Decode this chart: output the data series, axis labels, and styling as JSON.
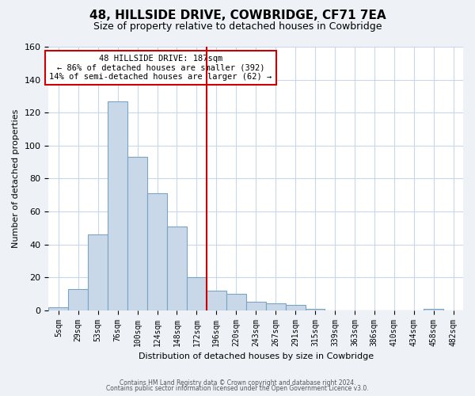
{
  "title": "48, HILLSIDE DRIVE, COWBRIDGE, CF71 7EA",
  "subtitle": "Size of property relative to detached houses in Cowbridge",
  "xlabel": "Distribution of detached houses by size in Cowbridge",
  "ylabel": "Number of detached properties",
  "bin_labels": [
    "5sqm",
    "29sqm",
    "53sqm",
    "76sqm",
    "100sqm",
    "124sqm",
    "148sqm",
    "172sqm",
    "196sqm",
    "220sqm",
    "243sqm",
    "267sqm",
    "291sqm",
    "315sqm",
    "339sqm",
    "363sqm",
    "386sqm",
    "410sqm",
    "434sqm",
    "458sqm",
    "482sqm"
  ],
  "bar_heights": [
    2,
    13,
    46,
    127,
    93,
    71,
    51,
    20,
    12,
    10,
    5,
    4,
    3,
    1,
    0,
    0,
    0,
    0,
    0,
    1,
    0
  ],
  "bar_color": "#c8d8e8",
  "bar_edge_color": "#7ba4c4",
  "vline_x": 7.5,
  "vline_color": "#cc0000",
  "ylim": [
    0,
    160
  ],
  "yticks": [
    0,
    20,
    40,
    60,
    80,
    100,
    120,
    140,
    160
  ],
  "annotation_title": "48 HILLSIDE DRIVE: 187sqm",
  "annotation_line1": "← 86% of detached houses are smaller (392)",
  "annotation_line2": "14% of semi-detached houses are larger (62) →",
  "annotation_box_color": "#cc0000",
  "footer_line1": "Contains HM Land Registry data © Crown copyright and database right 2024.",
  "footer_line2": "Contains public sector information licensed under the Open Government Licence v3.0.",
  "background_color": "#eef2f6",
  "plot_bg_color": "#ffffff"
}
